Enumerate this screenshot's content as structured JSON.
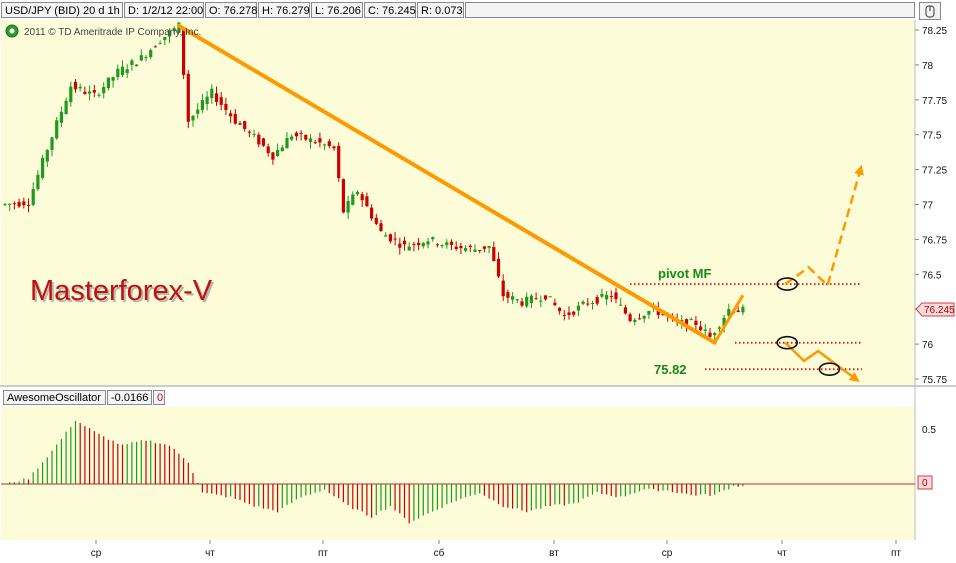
{
  "header": {
    "symbol": "USD/JPY (BID) 20 d 1h",
    "date": "D: 1/2/12 22:00",
    "open": "O: 76.278",
    "high": "H: 76.279",
    "low": "L: 76.206",
    "close": "C: 76.245",
    "range": "R: 0.073"
  },
  "copyright": "2011 © TD Ameritrade IP Company, Inc.",
  "watermark": "Masterforex-V",
  "annotations": {
    "pivot_label": "pivot MF",
    "level_label": "75.82",
    "last_price": "76.245"
  },
  "oscillator": {
    "name": "AwesomeOscillator",
    "value": "-0.0166",
    "zero_badge": "0"
  },
  "colors": {
    "up": "#1f9a1f",
    "down": "#cc0000",
    "panel_bg": "#fdfcd9",
    "trendline": "#ff9900",
    "dotted": "#d62020",
    "label_green": "#178a17",
    "watermark_red": "#c21010"
  },
  "chart_data": [
    {
      "type": "candlestick",
      "title": "USD/JPY (BID) 20 d 1h",
      "ylim": [
        75.73,
        78.3
      ],
      "y_ticks": [
        "78.25",
        "78",
        "77.75",
        "77.5",
        "77.25",
        "77",
        "76.75",
        "76.5",
        "76.25",
        "76",
        "75.75"
      ],
      "x_ticks": [
        "ср",
        "чт",
        "пт",
        "сб",
        "вт",
        "ср",
        "чт",
        "пт"
      ],
      "price_path": [
        {
          "i": 0,
          "p": 77.0
        },
        {
          "i": 5,
          "p": 77.02
        },
        {
          "i": 9,
          "p": 77.4
        },
        {
          "i": 14,
          "p": 77.85
        },
        {
          "i": 19,
          "p": 77.78
        },
        {
          "i": 24,
          "p": 77.95
        },
        {
          "i": 29,
          "p": 78.05
        },
        {
          "i": 33,
          "p": 78.18
        },
        {
          "i": 37,
          "p": 78.28
        },
        {
          "i": 39,
          "p": 77.6
        },
        {
          "i": 44,
          "p": 77.8
        },
        {
          "i": 49,
          "p": 77.6
        },
        {
          "i": 54,
          "p": 77.45
        },
        {
          "i": 57,
          "p": 77.35
        },
        {
          "i": 61,
          "p": 77.5
        },
        {
          "i": 66,
          "p": 77.45
        },
        {
          "i": 70,
          "p": 77.4
        },
        {
          "i": 72,
          "p": 76.95
        },
        {
          "i": 75,
          "p": 77.1
        },
        {
          "i": 80,
          "p": 76.8
        },
        {
          "i": 85,
          "p": 76.7
        },
        {
          "i": 90,
          "p": 76.75
        },
        {
          "i": 95,
          "p": 76.7
        },
        {
          "i": 100,
          "p": 76.68
        },
        {
          "i": 103,
          "p": 76.7
        },
        {
          "i": 106,
          "p": 76.35
        },
        {
          "i": 110,
          "p": 76.3
        },
        {
          "i": 115,
          "p": 76.35
        },
        {
          "i": 119,
          "p": 76.2
        },
        {
          "i": 124,
          "p": 76.3
        },
        {
          "i": 129,
          "p": 76.35
        },
        {
          "i": 133,
          "p": 76.18
        },
        {
          "i": 138,
          "p": 76.25
        },
        {
          "i": 143,
          "p": 76.15
        },
        {
          "i": 147,
          "p": 76.15
        },
        {
          "i": 150,
          "p": 76.05
        },
        {
          "i": 154,
          "p": 76.25
        },
        {
          "i": 157,
          "p": 76.24
        }
      ],
      "overlays": {
        "trendline": [
          {
            "i": 37,
            "p": 78.28
          },
          {
            "i": 151,
            "p": 76.01
          }
        ],
        "pivot_level": 76.43,
        "support_level": 76.01,
        "target_level": 75.82,
        "projection_up": [
          {
            "i": 151,
            "p": 76.01
          },
          {
            "i": 157,
            "p": 76.35
          }
        ],
        "scenario_up": [
          {
            "i": 166,
            "p": 76.43
          },
          {
            "i": 171,
            "p": 76.55
          },
          {
            "i": 175,
            "p": 76.42
          },
          {
            "i": 182,
            "p": 77.25
          }
        ],
        "scenario_down": [
          {
            "i": 166,
            "p": 76.01
          },
          {
            "i": 170,
            "p": 75.88
          },
          {
            "i": 173,
            "p": 75.95
          },
          {
            "i": 181,
            "p": 75.75
          }
        ],
        "markers": [
          {
            "i": 166,
            "p": 76.43
          },
          {
            "i": 166,
            "p": 76.01
          },
          {
            "i": 175,
            "p": 75.82
          }
        ]
      }
    },
    {
      "type": "bar",
      "title": "AwesomeOscillator",
      "ylim": [
        -0.4,
        0.75
      ],
      "y_ticks": [
        "0.5",
        "0"
      ],
      "wave_path": [
        {
          "i": 0,
          "v": 0.0
        },
        {
          "i": 5,
          "v": 0.05
        },
        {
          "i": 10,
          "v": 0.3
        },
        {
          "i": 15,
          "v": 0.58
        },
        {
          "i": 20,
          "v": 0.45
        },
        {
          "i": 25,
          "v": 0.35
        },
        {
          "i": 30,
          "v": 0.4
        },
        {
          "i": 35,
          "v": 0.35
        },
        {
          "i": 39,
          "v": 0.2
        },
        {
          "i": 42,
          "v": -0.08
        },
        {
          "i": 48,
          "v": -0.12
        },
        {
          "i": 53,
          "v": -0.2
        },
        {
          "i": 58,
          "v": -0.25
        },
        {
          "i": 63,
          "v": -0.12
        },
        {
          "i": 68,
          "v": -0.05
        },
        {
          "i": 73,
          "v": -0.2
        },
        {
          "i": 78,
          "v": -0.3
        },
        {
          "i": 82,
          "v": -0.2
        },
        {
          "i": 86,
          "v": -0.35
        },
        {
          "i": 91,
          "v": -0.25
        },
        {
          "i": 96,
          "v": -0.15
        },
        {
          "i": 101,
          "v": -0.08
        },
        {
          "i": 106,
          "v": -0.2
        },
        {
          "i": 111,
          "v": -0.25
        },
        {
          "i": 116,
          "v": -0.2
        },
        {
          "i": 121,
          "v": -0.18
        },
        {
          "i": 126,
          "v": -0.08
        },
        {
          "i": 131,
          "v": -0.12
        },
        {
          "i": 136,
          "v": -0.05
        },
        {
          "i": 141,
          "v": -0.06
        },
        {
          "i": 146,
          "v": -0.1
        },
        {
          "i": 151,
          "v": -0.1
        },
        {
          "i": 155,
          "v": -0.02
        },
        {
          "i": 157,
          "v": -0.0166
        }
      ]
    }
  ]
}
